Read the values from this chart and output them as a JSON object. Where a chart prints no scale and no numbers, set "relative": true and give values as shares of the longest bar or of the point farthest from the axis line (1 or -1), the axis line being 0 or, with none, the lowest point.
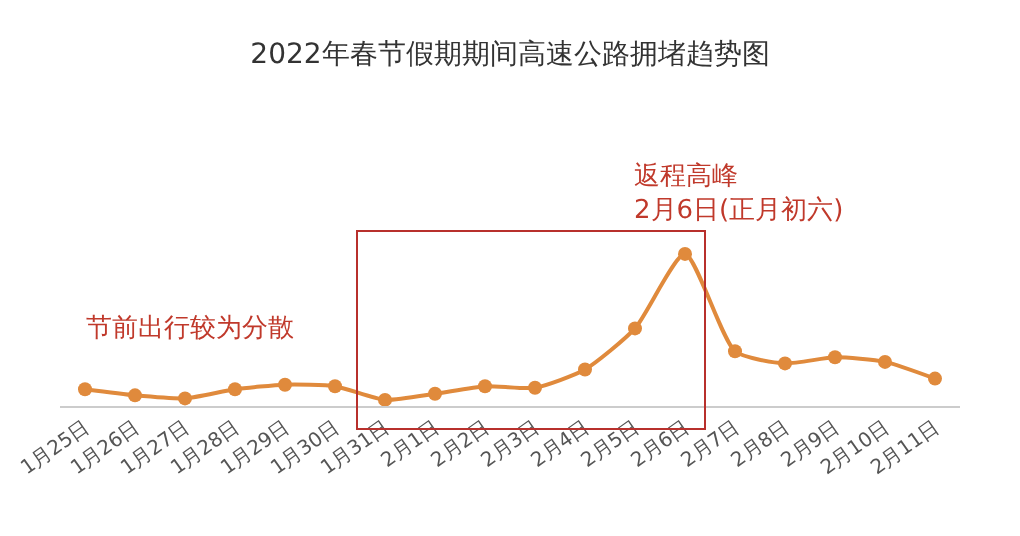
{
  "chart_data": {
    "type": "line",
    "title": "2022年春节假期期间高速公路拥堵趋势图",
    "relative": true,
    "categories": [
      "1月25日",
      "1月26日",
      "1月27日",
      "1月28日",
      "1月29日",
      "1月30日",
      "1月31日",
      "2月1日",
      "2月2日",
      "2月3日",
      "2月4日",
      "2月5日",
      "2月6日",
      "2月7日",
      "2月8日",
      "2月9日",
      "2月10日",
      "2月11日"
    ],
    "series": [
      {
        "color": "#e08a3c",
        "values": [
          0.11,
          0.07,
          0.05,
          0.11,
          0.14,
          0.13,
          0.04,
          0.08,
          0.13,
          0.12,
          0.24,
          0.51,
          1,
          0.36,
          0.28,
          0.32,
          0.29,
          0.18
        ]
      }
    ],
    "marker": "circle",
    "line_style": "solid",
    "grid": false,
    "annotations": [
      {
        "text": "节前出行较为分散"
      },
      {
        "text": "返程高峰\n2月6日(正月初六)",
        "x": "2月6日",
        "y": 1
      }
    ]
  }
}
